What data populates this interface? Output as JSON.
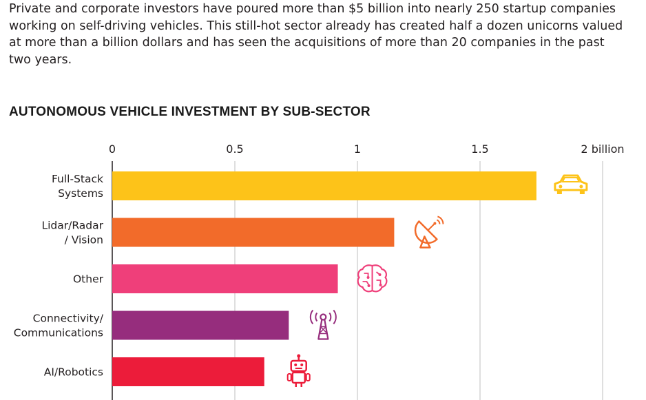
{
  "intro_text": "Private and corporate investors have poured more than $5 billion into nearly 250 startup companies working on self-driving vehicles. This still-hot sector already has created half a dozen unicorns valued at more than a billion dollars and has seen the acquisitions of more than 20 companies in the past two years.",
  "chart_data": {
    "type": "bar",
    "orientation": "horizontal",
    "title": "AUTONOMOUS VEHICLE INVESTMENT BY SUB-SECTOR",
    "xlim": [
      0,
      2
    ],
    "ticks": [
      {
        "value": 0,
        "label": "0"
      },
      {
        "value": 0.5,
        "label": "0.5"
      },
      {
        "value": 1,
        "label": "1"
      },
      {
        "value": 1.5,
        "label": "1.5"
      },
      {
        "value": 2,
        "label": "2 billion"
      }
    ],
    "grid": true,
    "categories": [
      {
        "lines": [
          "Full-Stack",
          "Systems"
        ]
      },
      {
        "lines": [
          "Lidar/Radar",
          "/ Vision"
        ]
      },
      {
        "lines": [
          "Other"
        ]
      },
      {
        "lines": [
          "Connectivity/",
          "Communications"
        ]
      },
      {
        "lines": [
          "AI/Robotics"
        ]
      }
    ],
    "values": [
      1.73,
      1.15,
      0.92,
      0.72,
      0.62
    ],
    "colors": [
      "#fdc319",
      "#f26b2a",
      "#ef3f7a",
      "#962d7d",
      "#ec1c3a"
    ],
    "icons": [
      "car-icon",
      "satellite-dish-icon",
      "brain-icon",
      "antenna-tower-icon",
      "robot-icon"
    ]
  }
}
